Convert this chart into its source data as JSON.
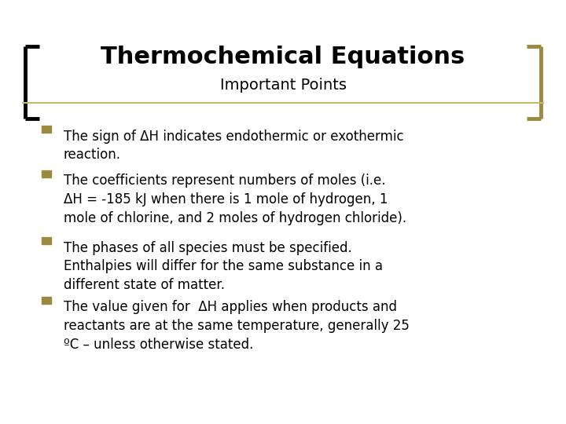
{
  "title": "Thermochemical Equations",
  "subtitle": "Important Points",
  "title_color": "#000000",
  "subtitle_color": "#000000",
  "background_color": "#ffffff",
  "bullet_color": "#9B8940",
  "bracket_color_left": "#000000",
  "bracket_color_right": "#9B8940",
  "separator_color": "#C8B870",
  "bullet_points": [
    "The sign of ΔH indicates endothermic or exothermic\nreaction.",
    "The coefficients represent numbers of moles (i.e.\nΔH = -185 kJ when there is 1 mole of hydrogen, 1\nmole of chlorine, and 2 moles of hydrogen chloride).",
    "The phases of all species must be specified.\nEnthalpies will differ for the same substance in a\ndifferent state of matter.",
    "The value given for  ΔH applies when products and\nreactants are at the same temperature, generally 25\nºC – unless otherwise stated."
  ],
  "title_fontsize": 22,
  "subtitle_fontsize": 14,
  "bullet_fontsize": 12,
  "figsize": [
    7.2,
    5.4
  ],
  "dpi": 100
}
